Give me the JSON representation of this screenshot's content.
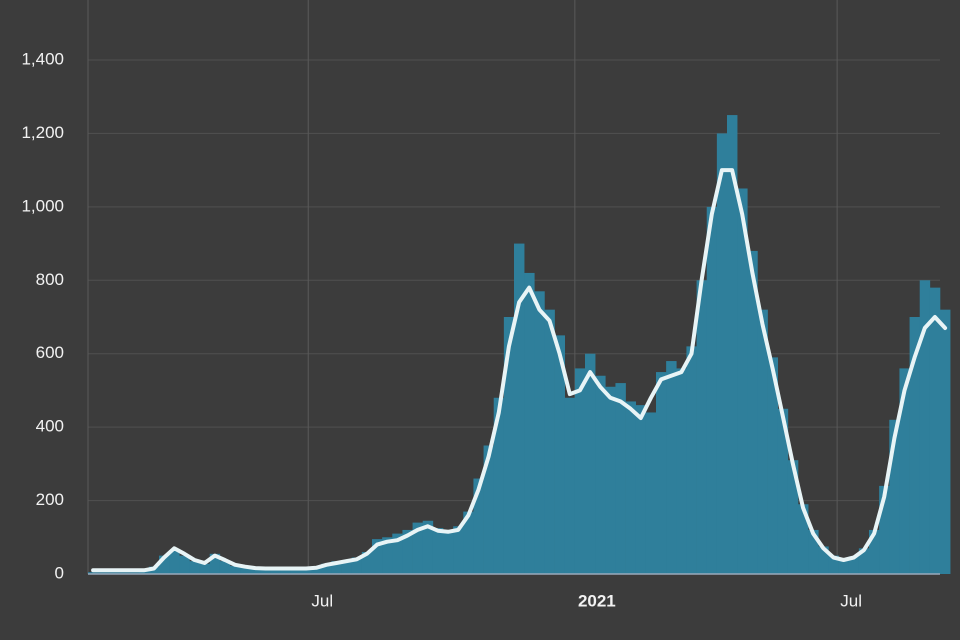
{
  "chart_data": {
    "type": "bar-line",
    "x": [
      0,
      7,
      14,
      21,
      28,
      35,
      42,
      49,
      56,
      63,
      70,
      77,
      84,
      91,
      98,
      105,
      112,
      119,
      126,
      133,
      140,
      147,
      154,
      161,
      168,
      175,
      182,
      189,
      196,
      203,
      210,
      217,
      224,
      231,
      238,
      245,
      252,
      259,
      266,
      273,
      280,
      287,
      294,
      301,
      308,
      315,
      322,
      329,
      336,
      343,
      350,
      357,
      364,
      371,
      378,
      385,
      392,
      399,
      406,
      413,
      420,
      427,
      434,
      441,
      448,
      455,
      462,
      469,
      476,
      483,
      490,
      497,
      504,
      511,
      518,
      525,
      532,
      539,
      546,
      553,
      560,
      567,
      574,
      581,
      588
    ],
    "series": [
      {
        "type": "bar",
        "color": "#2f7f9b",
        "values": [
          5,
          5,
          5,
          5,
          5,
          8,
          20,
          50,
          65,
          50,
          35,
          28,
          55,
          35,
          22,
          18,
          15,
          14,
          15,
          14,
          15,
          16,
          20,
          28,
          35,
          38,
          45,
          60,
          95,
          100,
          110,
          120,
          140,
          145,
          125,
          120,
          130,
          170,
          260,
          350,
          480,
          700,
          900,
          820,
          770,
          720,
          650,
          480,
          560,
          600,
          540,
          510,
          520,
          470,
          460,
          440,
          550,
          580,
          560,
          620,
          800,
          1000,
          1200,
          1250,
          1050,
          880,
          720,
          590,
          450,
          310,
          190,
          120,
          75,
          50,
          40,
          48,
          70,
          120,
          240,
          420,
          560,
          700,
          800,
          780,
          720
        ]
      },
      {
        "type": "line",
        "color": "#e8f4f6",
        "values": [
          10,
          10,
          10,
          10,
          10,
          10,
          15,
          45,
          70,
          55,
          38,
          30,
          50,
          38,
          25,
          20,
          16,
          15,
          15,
          15,
          15,
          15,
          17,
          25,
          30,
          35,
          40,
          55,
          80,
          88,
          92,
          105,
          120,
          130,
          118,
          115,
          120,
          160,
          230,
          320,
          440,
          620,
          740,
          780,
          720,
          690,
          600,
          490,
          500,
          550,
          510,
          480,
          470,
          450,
          425,
          480,
          530,
          540,
          550,
          600,
          800,
          980,
          1100,
          1100,
          980,
          820,
          680,
          560,
          430,
          300,
          180,
          110,
          70,
          45,
          38,
          45,
          65,
          110,
          210,
          370,
          500,
          590,
          670,
          700,
          670
        ]
      }
    ],
    "xlim": [
      0,
      588
    ],
    "xticks": [
      {
        "value": 152,
        "label": "Jul"
      },
      {
        "value": 336,
        "label": "2021"
      },
      {
        "value": 517,
        "label": "Jul"
      }
    ],
    "ylim": [
      0,
      1400
    ],
    "yticks": [
      0,
      200,
      400,
      600,
      800,
      {
        "value": 1000,
        "label": "1,000"
      },
      {
        "value": 1200,
        "label": "1,200"
      },
      {
        "value": 1400,
        "label": "1,400"
      }
    ],
    "grid": true
  }
}
